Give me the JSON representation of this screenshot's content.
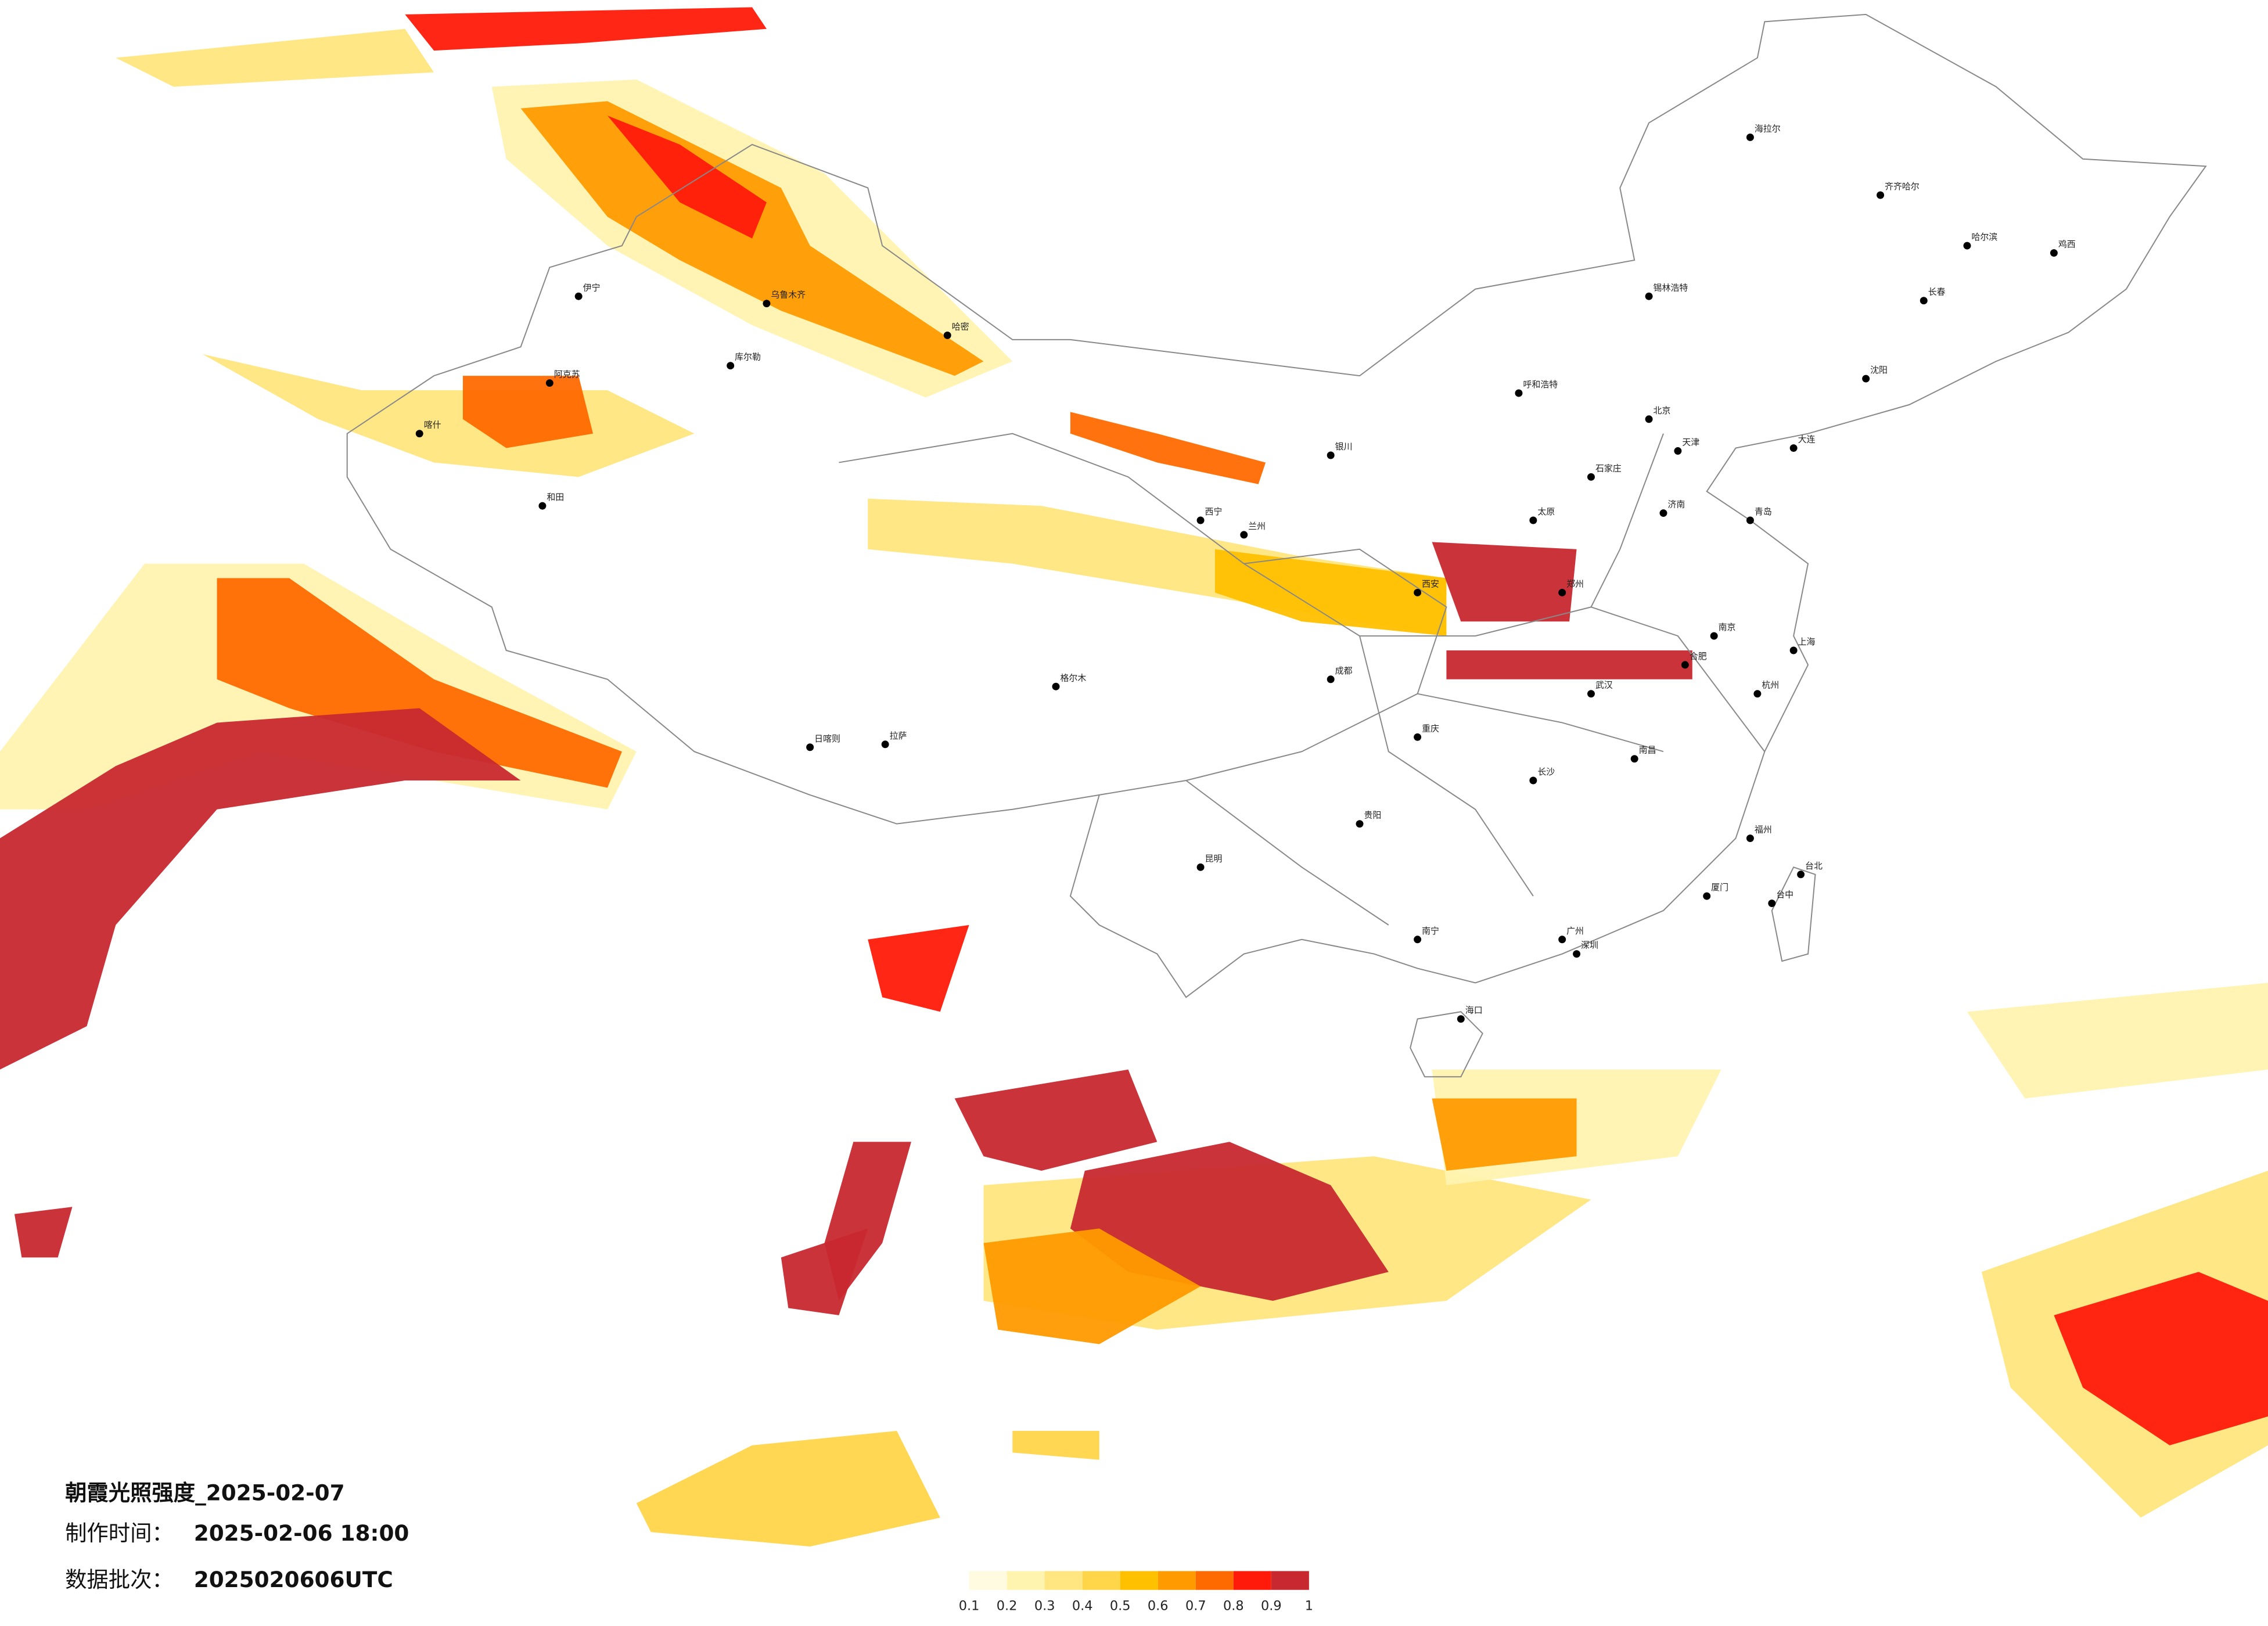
{
  "title": "朝霞光照强度_2025-02-07",
  "made_label": "制作时间：",
  "made_value": "2025-02-06 18:00",
  "batch_label": "数据批次：",
  "batch_value": "2025020606UTC",
  "colorbar": {
    "ticks": [
      0.1,
      0.2,
      0.3,
      0.4,
      0.5,
      0.6,
      0.7,
      0.8,
      0.9,
      1
    ],
    "colors": [
      "#fffbe0",
      "#fff3b0",
      "#ffe680",
      "#ffd54a",
      "#ffc000",
      "#ff9a00",
      "#ff6a00",
      "#ff1a0a",
      "#c8282f"
    ]
  },
  "cities": [
    "哈尔滨",
    "长春",
    "沈阳",
    "北京",
    "天津",
    "石家庄",
    "太原",
    "呼和浩特",
    "济南",
    "郑州",
    "西安",
    "兰州",
    "西宁",
    "银川",
    "乌鲁木齐",
    "拉萨",
    "成都",
    "重庆",
    "武汉",
    "长沙",
    "南昌",
    "合肥",
    "南京",
    "上海",
    "杭州",
    "福州",
    "台北",
    "广州",
    "南宁",
    "海口",
    "昆明",
    "贵阳",
    "库尔勒",
    "和田",
    "日喀则",
    "格尔木",
    "哈密",
    "伊宁",
    "阿克苏",
    "喀什",
    "齐齐哈尔",
    "海拉尔",
    "锡林浩特",
    "大连",
    "青岛",
    "厦门",
    "深圳",
    "台中",
    "鸡西"
  ]
}
